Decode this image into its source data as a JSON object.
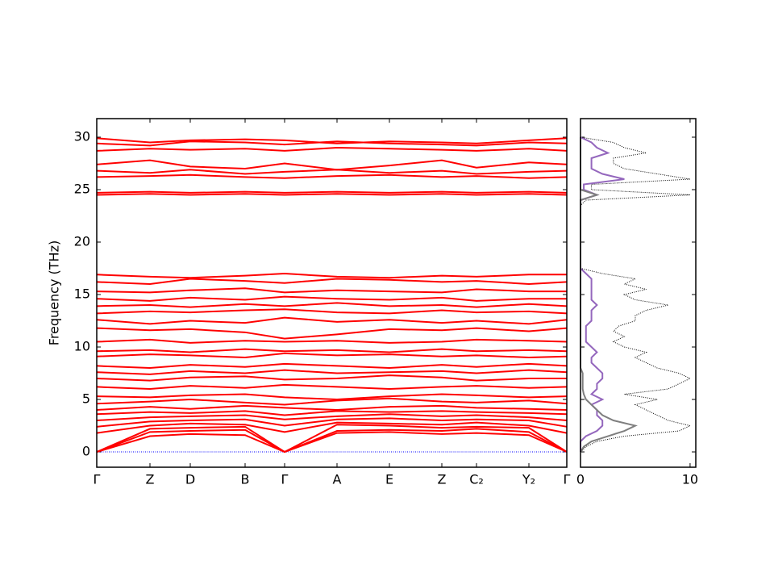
{
  "chart_data": [
    {
      "type": "line",
      "ylabel": "Frequency (THz)",
      "color": "#ff0000",
      "zero_line": {
        "value": 0,
        "color": "#0000ff"
      },
      "x": [
        0,
        0.66,
        1.16,
        1.84,
        2.33,
        2.98,
        3.63,
        4.28,
        4.71,
        5.36,
        5.83
      ],
      "xlim": [
        0,
        5.83
      ],
      "xticks": [
        {
          "value": 0,
          "label": "Γ"
        },
        {
          "value": 0.66,
          "label": "Z"
        },
        {
          "value": 1.16,
          "label": "D"
        },
        {
          "value": 1.84,
          "label": "B"
        },
        {
          "value": 2.33,
          "label": "Γ"
        },
        {
          "value": 2.98,
          "label": "A"
        },
        {
          "value": 3.63,
          "label": "E"
        },
        {
          "value": 4.28,
          "label": "Z"
        },
        {
          "value": 4.71,
          "label": "C₂"
        },
        {
          "value": 5.36,
          "label": "Y₂"
        },
        {
          "value": 5.83,
          "label": "Γ"
        }
      ],
      "ylim": [
        -1.46,
        31.77
      ],
      "yticks": [
        0,
        5,
        10,
        15,
        20,
        25,
        30
      ],
      "bands": [
        [
          0,
          1.5,
          1.7,
          1.6,
          0,
          1.8,
          1.9,
          1.7,
          1.8,
          1.6,
          0
        ],
        [
          0,
          1.9,
          2.0,
          2.1,
          0,
          2.0,
          2.1,
          2.0,
          2.2,
          1.9,
          0
        ],
        [
          0,
          2.2,
          2.3,
          2.4,
          0,
          2.6,
          2.5,
          2.3,
          2.4,
          2.3,
          0
        ],
        [
          1.8,
          2.5,
          2.7,
          2.6,
          1.9,
          2.8,
          2.7,
          2.6,
          2.8,
          2.5,
          1.8
        ],
        [
          2.4,
          2.9,
          3.0,
          3.1,
          2.5,
          3.1,
          3.2,
          3.0,
          3.1,
          3.0,
          2.4
        ],
        [
          3.0,
          3.3,
          3.4,
          3.5,
          3.1,
          3.4,
          3.6,
          3.4,
          3.5,
          3.3,
          3.0
        ],
        [
          3.6,
          3.8,
          3.7,
          3.9,
          3.5,
          3.9,
          3.8,
          3.9,
          3.8,
          3.7,
          3.6
        ],
        [
          4.0,
          4.3,
          4.1,
          4.4,
          4.2,
          4.0,
          4.3,
          4.4,
          4.2,
          4.1,
          4.0
        ],
        [
          4.6,
          4.8,
          5.0,
          4.7,
          4.5,
          4.9,
          5.1,
          4.8,
          4.7,
          4.9,
          4.6
        ],
        [
          5.3,
          5.2,
          5.4,
          5.5,
          5.2,
          5.0,
          5.3,
          5.5,
          5.4,
          5.2,
          5.3
        ],
        [
          6.2,
          6.0,
          6.3,
          6.1,
          6.4,
          6.2,
          6.0,
          6.2,
          6.3,
          6.1,
          6.2
        ],
        [
          7.0,
          6.8,
          7.1,
          7.2,
          6.9,
          7.0,
          7.3,
          7.1,
          6.8,
          7.0,
          7.0
        ],
        [
          7.6,
          7.4,
          7.7,
          7.5,
          7.8,
          7.5,
          7.6,
          7.7,
          7.5,
          7.8,
          7.6
        ],
        [
          8.2,
          8.0,
          8.3,
          8.1,
          8.4,
          8.2,
          8.0,
          8.3,
          8.1,
          8.4,
          8.2
        ],
        [
          9.1,
          9.3,
          9.2,
          9.0,
          9.4,
          9.2,
          9.3,
          9.1,
          9.2,
          9.0,
          9.1
        ],
        [
          9.6,
          9.7,
          9.5,
          9.8,
          9.6,
          9.7,
          9.5,
          9.8,
          9.6,
          9.7,
          9.6
        ],
        [
          10.5,
          10.7,
          10.4,
          10.6,
          10.5,
          10.6,
          10.4,
          10.5,
          10.7,
          10.6,
          10.5
        ],
        [
          11.8,
          11.6,
          11.7,
          11.4,
          10.8,
          11.2,
          11.7,
          11.6,
          11.8,
          11.5,
          11.8
        ],
        [
          12.6,
          12.2,
          12.5,
          12.3,
          12.8,
          12.4,
          12.6,
          12.3,
          12.5,
          12.2,
          12.6
        ],
        [
          13.2,
          13.4,
          13.3,
          13.5,
          13.6,
          13.3,
          13.2,
          13.5,
          13.3,
          13.4,
          13.2
        ],
        [
          13.9,
          14.0,
          13.8,
          14.1,
          13.9,
          14.2,
          13.9,
          14.0,
          13.8,
          14.1,
          13.9
        ],
        [
          14.6,
          14.4,
          14.7,
          14.5,
          14.8,
          14.6,
          14.5,
          14.7,
          14.4,
          14.6,
          14.6
        ],
        [
          15.3,
          15.2,
          15.4,
          15.6,
          15.2,
          15.4,
          15.3,
          15.2,
          15.5,
          15.3,
          15.3
        ],
        [
          16.2,
          16.0,
          16.5,
          16.3,
          16.1,
          16.5,
          16.4,
          16.2,
          16.3,
          16.0,
          16.2
        ],
        [
          16.9,
          16.7,
          16.6,
          16.8,
          17.0,
          16.7,
          16.6,
          16.8,
          16.7,
          16.9,
          16.9
        ],
        [
          24.5,
          24.6,
          24.5,
          24.6,
          24.5,
          24.6,
          24.5,
          24.6,
          24.5,
          24.6,
          24.5
        ],
        [
          24.7,
          24.8,
          24.7,
          24.8,
          24.7,
          24.8,
          24.7,
          24.8,
          24.7,
          24.8,
          24.7
        ],
        [
          26.2,
          26.3,
          26.4,
          26.2,
          26.1,
          26.3,
          26.4,
          26.2,
          26.3,
          26.1,
          26.2
        ],
        [
          26.8,
          26.6,
          26.9,
          26.5,
          26.7,
          26.9,
          26.6,
          26.8,
          26.5,
          26.7,
          26.8
        ],
        [
          27.4,
          27.8,
          27.2,
          27.0,
          27.5,
          26.9,
          27.3,
          27.8,
          27.1,
          27.6,
          27.4
        ],
        [
          28.7,
          28.9,
          28.8,
          28.9,
          28.7,
          29.0,
          28.9,
          28.8,
          28.7,
          28.9,
          28.7
        ],
        [
          29.4,
          29.2,
          29.6,
          29.5,
          29.3,
          29.6,
          29.4,
          29.3,
          29.2,
          29.5,
          29.4
        ],
        [
          29.9,
          29.5,
          29.7,
          29.8,
          29.7,
          29.4,
          29.6,
          29.5,
          29.4,
          29.7,
          29.9
        ]
      ]
    },
    {
      "type": "dos",
      "xlim": [
        0,
        10.52
      ],
      "xticks": [
        0,
        10
      ],
      "ylim": [
        -1.46,
        31.77
      ],
      "yticks": [
        0,
        5,
        10,
        15,
        20,
        25,
        30
      ],
      "frequency": [
        0,
        0.5,
        1,
        1.5,
        2,
        2.5,
        3,
        3.5,
        4,
        4.5,
        5,
        5.5,
        6,
        6.5,
        7,
        7.5,
        8,
        8.5,
        9,
        9.5,
        10,
        10.5,
        11,
        11.5,
        12,
        12.5,
        13,
        13.5,
        14,
        14.5,
        15,
        15.5,
        16,
        16.5,
        17,
        17.5,
        18,
        18.5,
        19,
        19.5,
        20,
        20.5,
        21,
        21.5,
        22,
        22.5,
        23,
        23.5,
        24,
        24.5,
        25,
        25.5,
        26,
        26.5,
        27,
        27.5,
        28,
        28.5,
        29,
        29.5,
        30
      ],
      "series": [
        {
          "color": "#000000",
          "style": "dotted",
          "values": [
            0,
            0.5,
            1.5,
            4,
            9,
            10,
            8,
            7,
            6,
            5,
            7,
            4,
            8,
            9,
            10,
            9,
            7,
            6,
            5,
            6,
            4,
            3,
            4,
            3,
            3.5,
            5,
            5,
            6,
            8,
            5,
            4,
            6,
            4,
            5,
            2,
            0,
            0,
            0,
            0,
            0,
            0,
            0,
            0,
            0,
            0,
            0,
            0,
            0,
            0.5,
            10,
            1,
            1,
            10,
            7,
            4,
            3,
            3,
            6,
            4,
            3,
            0
          ]
        },
        {
          "color": "#7f7f7f",
          "style": "solid",
          "values": [
            0,
            0.3,
            1,
            2.5,
            4,
            5,
            3,
            2,
            1.5,
            1,
            0.5,
            0.3,
            0.2,
            0.2,
            0.2,
            0.2,
            0,
            0,
            0,
            0,
            0,
            0,
            0,
            0,
            0,
            0,
            0,
            0,
            0,
            0,
            0,
            0,
            0,
            0,
            0,
            0,
            0,
            0,
            0,
            0,
            0,
            0,
            0,
            0,
            0,
            0,
            0,
            0,
            0,
            1.5,
            0,
            0,
            0,
            0,
            0,
            0,
            0,
            0,
            0,
            0,
            0
          ]
        },
        {
          "color": "#9467bd",
          "style": "solid",
          "values": [
            0,
            0,
            0,
            0.5,
            1.5,
            2,
            2,
            1.5,
            1.5,
            1,
            2,
            1,
            1.5,
            1.5,
            2,
            2,
            1.5,
            1,
            1,
            1.5,
            1,
            0.5,
            0.5,
            0.5,
            0.5,
            1,
            1,
            1,
            1.5,
            1,
            1,
            1,
            1,
            1,
            0.5,
            0,
            0,
            0,
            0,
            0,
            0,
            0,
            0,
            0,
            0,
            0,
            0,
            0,
            0,
            1.5,
            0.3,
            0.3,
            4,
            2,
            1,
            1,
            1,
            2.5,
            1.5,
            1,
            0
          ]
        }
      ]
    }
  ]
}
